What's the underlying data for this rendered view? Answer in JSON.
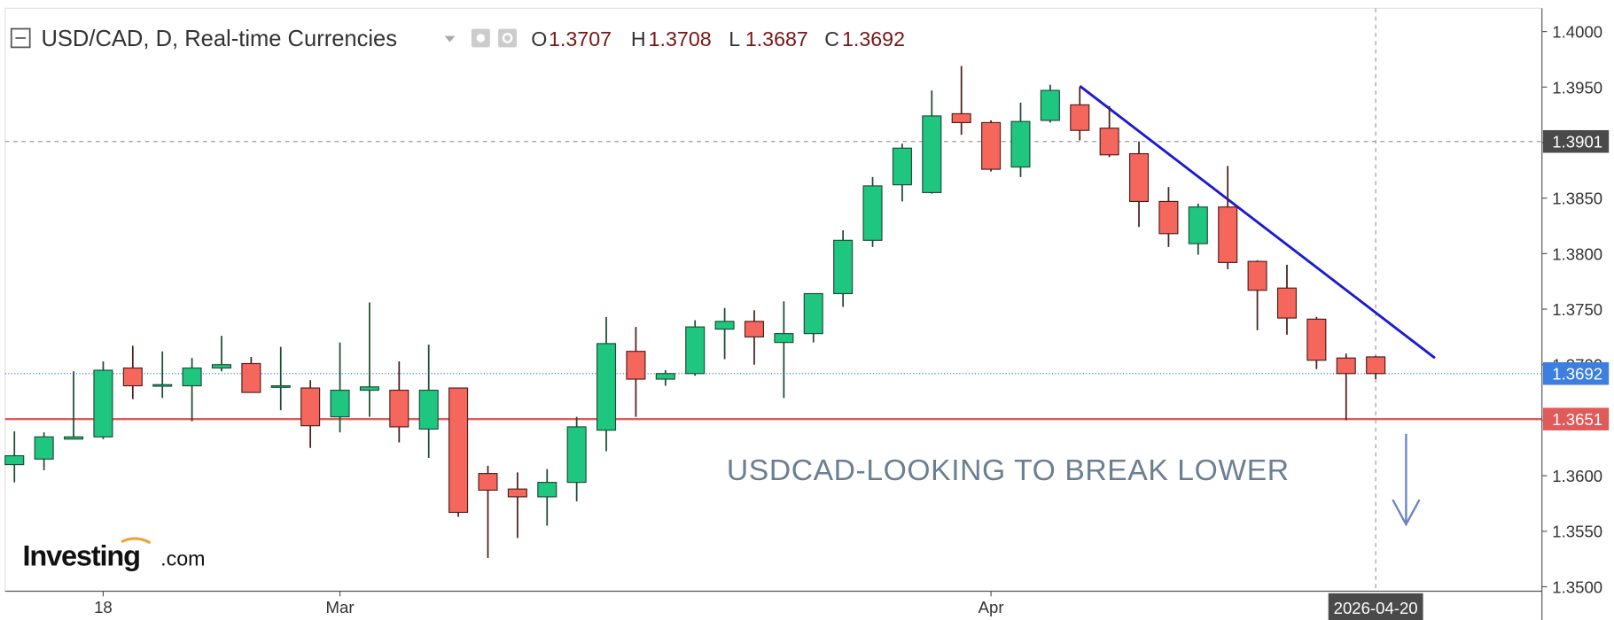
{
  "chart_data": {
    "type": "candlestick",
    "title": "USD/CAD, D, Real-time Currencies",
    "ohlc_labels": [
      "O",
      "H",
      "L",
      "C"
    ],
    "annotation": "USDCAD-LOOKING TO BREAK LOWER",
    "brand": "Investing",
    "brand_suffix": ".com",
    "categories": [
      null,
      null,
      null,
      "18",
      null,
      null,
      null,
      null,
      null,
      null,
      null,
      "Mar",
      null,
      null,
      null,
      null,
      null,
      null,
      null,
      null,
      null,
      null,
      null,
      null,
      null,
      null,
      null,
      null,
      null,
      null,
      null,
      null,
      null,
      "Apr",
      null,
      null,
      null,
      null,
      null,
      null,
      null,
      null,
      null,
      null,
      null,
      null,
      "2026-04-20"
    ],
    "open": [
      1.361,
      1.3615,
      1.3633,
      1.3635,
      1.3697,
      1.3681,
      1.3681,
      1.3697,
      1.3701,
      1.368,
      1.3679,
      1.3653,
      1.3677,
      1.3677,
      1.3642,
      1.3679,
      1.3602,
      1.3588,
      1.3581,
      1.3594,
      1.3641,
      1.3712,
      1.3687,
      1.3692,
      1.3732,
      1.3739,
      1.372,
      1.3728,
      1.3764,
      1.3812,
      1.3862,
      1.3855,
      1.3926,
      1.3918,
      1.3878,
      1.392,
      1.3934,
      1.3913,
      1.389,
      1.3847,
      1.3809,
      1.3842,
      1.3793,
      1.3769,
      1.3741,
      1.3706,
      1.3707
    ],
    "high": [
      1.364,
      1.3639,
      1.3694,
      1.3703,
      1.3717,
      1.3712,
      1.3706,
      1.3726,
      1.3707,
      1.3716,
      1.3686,
      1.372,
      1.3756,
      1.3703,
      1.3718,
      1.3679,
      1.3609,
      1.3603,
      1.3606,
      1.3653,
      1.3743,
      1.3734,
      1.3695,
      1.374,
      1.3751,
      1.3749,
      1.3757,
      1.3764,
      1.3821,
      1.3869,
      1.3899,
      1.3947,
      1.3969,
      1.392,
      1.3936,
      1.3952,
      1.395,
      1.3933,
      1.3901,
      1.386,
      1.3845,
      1.3879,
      1.3794,
      1.379,
      1.3743,
      1.371,
      1.3708
    ],
    "low": [
      1.3594,
      1.3605,
      1.3633,
      1.3633,
      1.3669,
      1.367,
      1.3649,
      1.3694,
      1.3675,
      1.3659,
      1.3625,
      1.3639,
      1.3653,
      1.363,
      1.3616,
      1.3563,
      1.3526,
      1.3544,
      1.3555,
      1.3577,
      1.3622,
      1.3653,
      1.3681,
      1.369,
      1.3705,
      1.37,
      1.367,
      1.372,
      1.3752,
      1.3806,
      1.3847,
      1.3854,
      1.3907,
      1.3874,
      1.3869,
      1.3918,
      1.3902,
      1.3887,
      1.3824,
      1.3806,
      1.3799,
      1.3786,
      1.3731,
      1.3727,
      1.3696,
      1.365,
      1.3687
    ],
    "close": [
      1.3618,
      1.3635,
      1.3635,
      1.3695,
      1.3681,
      1.3682,
      1.3697,
      1.37,
      1.3675,
      1.3681,
      1.3645,
      1.3677,
      1.368,
      1.3644,
      1.3677,
      1.3567,
      1.3587,
      1.3581,
      1.3594,
      1.3644,
      1.3719,
      1.3687,
      1.3692,
      1.3734,
      1.3739,
      1.3725,
      1.3728,
      1.3764,
      1.3812,
      1.3861,
      1.3895,
      1.3924,
      1.3918,
      1.3876,
      1.3919,
      1.3947,
      1.3911,
      1.3889,
      1.3847,
      1.3818,
      1.3842,
      1.3792,
      1.3767,
      1.3742,
      1.3704,
      1.3692,
      1.3692
    ],
    "up_color": "#1fc67f",
    "down_color": "#f5675d",
    "ylim": [
      1.3496,
      1.4021
    ],
    "yticks": [
      {
        "value": 1.35,
        "label": "1.3500"
      },
      {
        "value": 1.355,
        "label": "1.3550"
      },
      {
        "value": 1.36,
        "label": "1.3600"
      },
      {
        "value": 1.365,
        "label": "1.3650"
      },
      {
        "value": 1.37,
        "label": "1.3700"
      },
      {
        "value": 1.375,
        "label": "1.3750"
      },
      {
        "value": 1.38,
        "label": "1.3800"
      },
      {
        "value": 1.385,
        "label": "1.3850"
      },
      {
        "value": 1.39,
        "label": "1.3900"
      },
      {
        "value": 1.395,
        "label": "1.3950"
      },
      {
        "value": 1.4,
        "label": "1.4000"
      }
    ],
    "grid": false,
    "crosshair_value": 1.3901,
    "price_lines": [
      {
        "value": 1.3692,
        "color": "#3d7fe0",
        "style": "dotted"
      },
      {
        "value": 1.3651,
        "color": "#e05a5a",
        "style": "solid"
      }
    ],
    "trendline": {
      "start": [
        36,
        1.3951
      ],
      "end": [
        48,
        1.3706
      ],
      "color": "#1a1ad6"
    }
  }
}
